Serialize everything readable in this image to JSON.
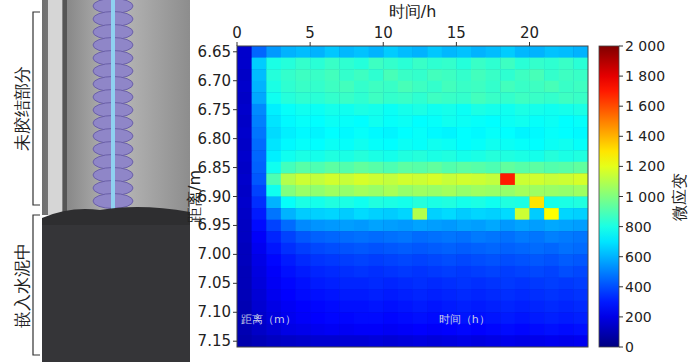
{
  "chart_data": {
    "type": "heatmap",
    "x_label": "时间/h",
    "y_label": "距离/m",
    "xlim": [
      0,
      24
    ],
    "xticks": [
      0,
      5,
      10,
      15,
      20
    ],
    "ylim": [
      7.16,
      6.64
    ],
    "yticks": [
      6.65,
      {
        "value": 6.7,
        "label": "6.70"
      },
      6.75,
      {
        "value": 6.8,
        "label": "6.80"
      },
      6.85,
      {
        "value": 6.9,
        "label": "6.90"
      },
      6.95,
      {
        "value": 7.0,
        "label": "7.00"
      },
      7.05,
      {
        "value": 7.1,
        "label": "7.10"
      },
      7.15
    ],
    "x": [
      0.5,
      1.5,
      2.5,
      3.5,
      4.5,
      5.5,
      6.5,
      7.5,
      8.5,
      9.5,
      10.5,
      11.5,
      12.5,
      13.5,
      14.5,
      15.5,
      16.5,
      17.5,
      18.5,
      19.5,
      20.5,
      21.5,
      22.5,
      23.5
    ],
    "y": [
      6.65,
      6.67,
      6.69,
      6.71,
      6.73,
      6.75,
      6.77,
      6.79,
      6.81,
      6.83,
      6.85,
      6.87,
      6.89,
      6.91,
      6.93,
      6.95,
      6.97,
      6.99,
      7.01,
      7.03,
      7.05,
      7.07,
      7.09,
      7.11,
      7.13,
      7.15
    ],
    "cells": [
      [
        150,
        450,
        550,
        600,
        620,
        600,
        640,
        610,
        630,
        600,
        650,
        620,
        600,
        640,
        610,
        630,
        600,
        620,
        650,
        610,
        600,
        630,
        620,
        600
      ],
      [
        150,
        650,
        800,
        820,
        850,
        830,
        860,
        840,
        820,
        870,
        850,
        830,
        860,
        840,
        850,
        820,
        860,
        840,
        870,
        830,
        850,
        840,
        860,
        830
      ],
      [
        140,
        620,
        820,
        850,
        870,
        860,
        880,
        850,
        870,
        840,
        890,
        860,
        850,
        880,
        870,
        850,
        880,
        860,
        840,
        870,
        890,
        850,
        870,
        860
      ],
      [
        150,
        600,
        800,
        840,
        860,
        850,
        870,
        880,
        850,
        870,
        860,
        890,
        870,
        850,
        880,
        860,
        870,
        850,
        880,
        860,
        870,
        890,
        860,
        870
      ],
      [
        140,
        580,
        780,
        820,
        840,
        830,
        850,
        860,
        840,
        870,
        850,
        860,
        840,
        870,
        860,
        850,
        880,
        860,
        850,
        870,
        860,
        850,
        870,
        860
      ],
      [
        150,
        520,
        720,
        760,
        780,
        770,
        790,
        780,
        800,
        790,
        770,
        790,
        800,
        780,
        790,
        770,
        800,
        790,
        780,
        800,
        790,
        780,
        790,
        800
      ],
      [
        140,
        500,
        700,
        740,
        760,
        750,
        770,
        760,
        750,
        780,
        760,
        770,
        750,
        760,
        780,
        770,
        760,
        750,
        770,
        780,
        760,
        770,
        750,
        760
      ],
      [
        150,
        480,
        680,
        720,
        740,
        730,
        750,
        740,
        760,
        740,
        730,
        750,
        760,
        740,
        730,
        750,
        740,
        760,
        750,
        730,
        740,
        760,
        750,
        740
      ],
      [
        140,
        460,
        700,
        740,
        760,
        750,
        770,
        760,
        780,
        760,
        750,
        770,
        760,
        780,
        770,
        750,
        760,
        780,
        770,
        760,
        750,
        770,
        780,
        760
      ],
      [
        150,
        450,
        720,
        780,
        800,
        790,
        810,
        800,
        820,
        800,
        790,
        810,
        820,
        800,
        810,
        790,
        800,
        820,
        810,
        800,
        790,
        820,
        800,
        810
      ],
      [
        140,
        440,
        780,
        880,
        920,
        900,
        930,
        910,
        940,
        920,
        900,
        930,
        920,
        940,
        910,
        930,
        920,
        900,
        940,
        920,
        930,
        910,
        920,
        940
      ],
      [
        150,
        420,
        900,
        1100,
        1150,
        1130,
        1160,
        1140,
        1170,
        1150,
        1130,
        1160,
        1150,
        1170,
        1140,
        1160,
        1150,
        1130,
        1700,
        1150,
        1160,
        1140,
        1150,
        1170
      ],
      [
        140,
        380,
        780,
        1000,
        1050,
        1030,
        1060,
        1040,
        1070,
        1050,
        1080,
        1040,
        1060,
        1050,
        1070,
        1040,
        1060,
        1050,
        1040,
        1070,
        1060,
        1050,
        1040,
        1060
      ],
      [
        150,
        340,
        600,
        760,
        800,
        790,
        810,
        800,
        780,
        810,
        800,
        790,
        820,
        800,
        810,
        790,
        800,
        780,
        810,
        800,
        1300,
        790,
        800,
        810
      ],
      [
        140,
        300,
        480,
        600,
        650,
        660,
        670,
        650,
        680,
        660,
        650,
        670,
        1100,
        660,
        680,
        650,
        670,
        660,
        680,
        1150,
        650,
        1250,
        670,
        660
      ],
      [
        130,
        270,
        380,
        460,
        520,
        540,
        550,
        560,
        550,
        570,
        560,
        550,
        570,
        560,
        550,
        570,
        560,
        580,
        550,
        570,
        560,
        580,
        570,
        560
      ],
      [
        130,
        240,
        320,
        380,
        420,
        440,
        450,
        460,
        470,
        460,
        470,
        480,
        460,
        470,
        480,
        470,
        490,
        480,
        470,
        490,
        480,
        500,
        490,
        480
      ],
      [
        120,
        220,
        290,
        340,
        370,
        390,
        400,
        410,
        420,
        410,
        420,
        430,
        420,
        430,
        440,
        430,
        440,
        450,
        440,
        450,
        460,
        450,
        470,
        460
      ],
      [
        120,
        200,
        260,
        300,
        330,
        350,
        360,
        370,
        380,
        370,
        380,
        390,
        380,
        390,
        400,
        390,
        400,
        410,
        400,
        410,
        420,
        410,
        430,
        420
      ],
      [
        110,
        190,
        240,
        280,
        300,
        320,
        330,
        340,
        350,
        340,
        350,
        360,
        350,
        360,
        370,
        360,
        370,
        380,
        370,
        380,
        390,
        380,
        400,
        390
      ],
      [
        110,
        180,
        230,
        260,
        280,
        300,
        310,
        320,
        320,
        330,
        320,
        330,
        340,
        330,
        340,
        350,
        340,
        350,
        360,
        350,
        360,
        370,
        360,
        370
      ],
      [
        110,
        170,
        220,
        250,
        270,
        280,
        290,
        300,
        300,
        310,
        300,
        310,
        320,
        310,
        320,
        330,
        320,
        330,
        340,
        330,
        340,
        350,
        340,
        350
      ],
      [
        100,
        160,
        200,
        230,
        250,
        260,
        270,
        280,
        280,
        290,
        280,
        290,
        300,
        290,
        300,
        310,
        300,
        310,
        320,
        310,
        320,
        330,
        320,
        330
      ],
      [
        100,
        150,
        190,
        220,
        240,
        250,
        260,
        260,
        270,
        270,
        260,
        270,
        280,
        270,
        280,
        290,
        280,
        290,
        300,
        290,
        300,
        310,
        300,
        310
      ],
      [
        100,
        140,
        170,
        200,
        210,
        220,
        230,
        230,
        240,
        240,
        230,
        240,
        250,
        240,
        250,
        260,
        250,
        260,
        270,
        260,
        270,
        280,
        270,
        280
      ],
      [
        90,
        110,
        130,
        140,
        150,
        160,
        160,
        170,
        170,
        180,
        170,
        180,
        190,
        180,
        190,
        200,
        190,
        200,
        210,
        200,
        210,
        220,
        210,
        220
      ]
    ],
    "colorbar_label": "微应变",
    "colorbar_range": [
      0,
      2000
    ],
    "colorbar_ticks": [
      0,
      200,
      400,
      600,
      800,
      {
        "value": 1000,
        "label": "1 000"
      },
      {
        "value": 1200,
        "label": "1 200"
      },
      {
        "value": 1400,
        "label": "1 400"
      },
      {
        "value": 1600,
        "label": "1 600"
      },
      {
        "value": 1800,
        "label": "1 800"
      },
      {
        "value": 2000,
        "label": "2 000"
      }
    ],
    "annotations": [
      "距离（m）",
      "时间（h）"
    ]
  },
  "figure_labels": [
    "未胶结部分",
    "嵌入水泥中"
  ]
}
